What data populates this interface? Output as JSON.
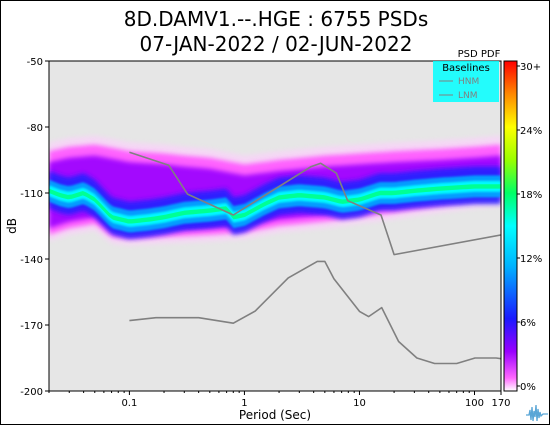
{
  "chart_data": {
    "type": "heatmap",
    "title": "8D.DAMV1.--.HGE : 6755 PSDs",
    "subtitle": "07-JAN-2022 / 02-JUN-2022",
    "xlabel": "Period (Sec)",
    "ylabel": "dB",
    "x_scale": "log",
    "xlim": [
      0.02,
      170
    ],
    "ylim": [
      -200,
      -50
    ],
    "x_ticks": [
      {
        "value": 0.1,
        "label": "0.1"
      },
      {
        "value": 1,
        "label": "1"
      },
      {
        "value": 10,
        "label": "10"
      },
      {
        "value": 100,
        "label": "100"
      },
      {
        "value": 170,
        "label": "170"
      }
    ],
    "y_ticks": [
      -50,
      -80,
      -110,
      -140,
      -170,
      -200
    ],
    "colorbar": {
      "title": "PSD PDF",
      "ticks": [
        "30+",
        "24%",
        "18%",
        "12%",
        "6%",
        "0%"
      ]
    },
    "legend": {
      "title": "Baselines",
      "entries": [
        "HNM",
        "LNM"
      ],
      "placement": "top-right"
    },
    "mode_curve": {
      "name": "mode",
      "x": [
        0.02,
        0.025,
        0.03,
        0.04,
        0.05,
        0.07,
        0.1,
        0.15,
        0.2,
        0.3,
        0.5,
        0.7,
        0.8,
        1,
        1.5,
        2,
        3,
        5,
        7,
        10,
        15,
        20,
        30,
        50,
        100,
        170
      ],
      "y": [
        -109,
        -111,
        -112,
        -110,
        -113,
        -121,
        -123,
        -122,
        -121,
        -119,
        -118,
        -117,
        -121,
        -120,
        -115,
        -112,
        -111,
        -112,
        -114,
        -113,
        -110,
        -110,
        -109,
        -108,
        -107,
        -107
      ]
    },
    "upper_envelope": {
      "x": [
        0.02,
        0.03,
        0.05,
        0.08,
        0.1,
        0.2,
        0.3,
        0.5,
        1,
        2,
        5,
        10,
        20,
        50,
        100,
        170
      ],
      "y": [
        -93,
        -91,
        -90,
        -92,
        -93,
        -94,
        -95,
        -96,
        -99,
        -97,
        -95,
        -94,
        -93,
        -92,
        -91,
        -90
      ]
    },
    "lower_envelope": {
      "x": [
        0.02,
        0.03,
        0.05,
        0.07,
        0.1,
        0.2,
        0.5,
        1,
        2,
        5,
        10,
        20,
        50,
        100,
        170
      ],
      "y": [
        -128,
        -125,
        -123,
        -129,
        -130,
        -129,
        -128,
        -127,
        -124,
        -122,
        -120,
        -118,
        -115,
        -113,
        -112
      ]
    },
    "hnm": {
      "name": "HNM",
      "x": [
        0.1,
        0.22,
        0.32,
        0.8,
        3.8,
        4.6,
        6.3,
        7.9,
        15.4,
        20,
        354.8
      ],
      "y": [
        -91.5,
        -97.4,
        -110.5,
        -120.0,
        -98.0,
        -96.5,
        -101.0,
        -113.5,
        -120.0,
        -138.0,
        -126.0
      ]
    },
    "lnm": {
      "name": "LNM",
      "x": [
        0.1,
        0.17,
        0.4,
        0.8,
        1.24,
        2.4,
        4.3,
        5.0,
        6.0,
        10.0,
        12.0,
        15.6,
        21.9,
        31.6,
        45.0,
        70.0,
        101.0,
        154.0,
        328.0
      ],
      "y": [
        -168.0,
        -166.7,
        -166.7,
        -169.2,
        -163.7,
        -148.6,
        -141.1,
        -141.1,
        -149.0,
        -163.8,
        -166.2,
        -162.1,
        -177.5,
        -185.0,
        -187.5,
        -187.5,
        -185.0,
        -185.0,
        -187.5
      ]
    }
  }
}
